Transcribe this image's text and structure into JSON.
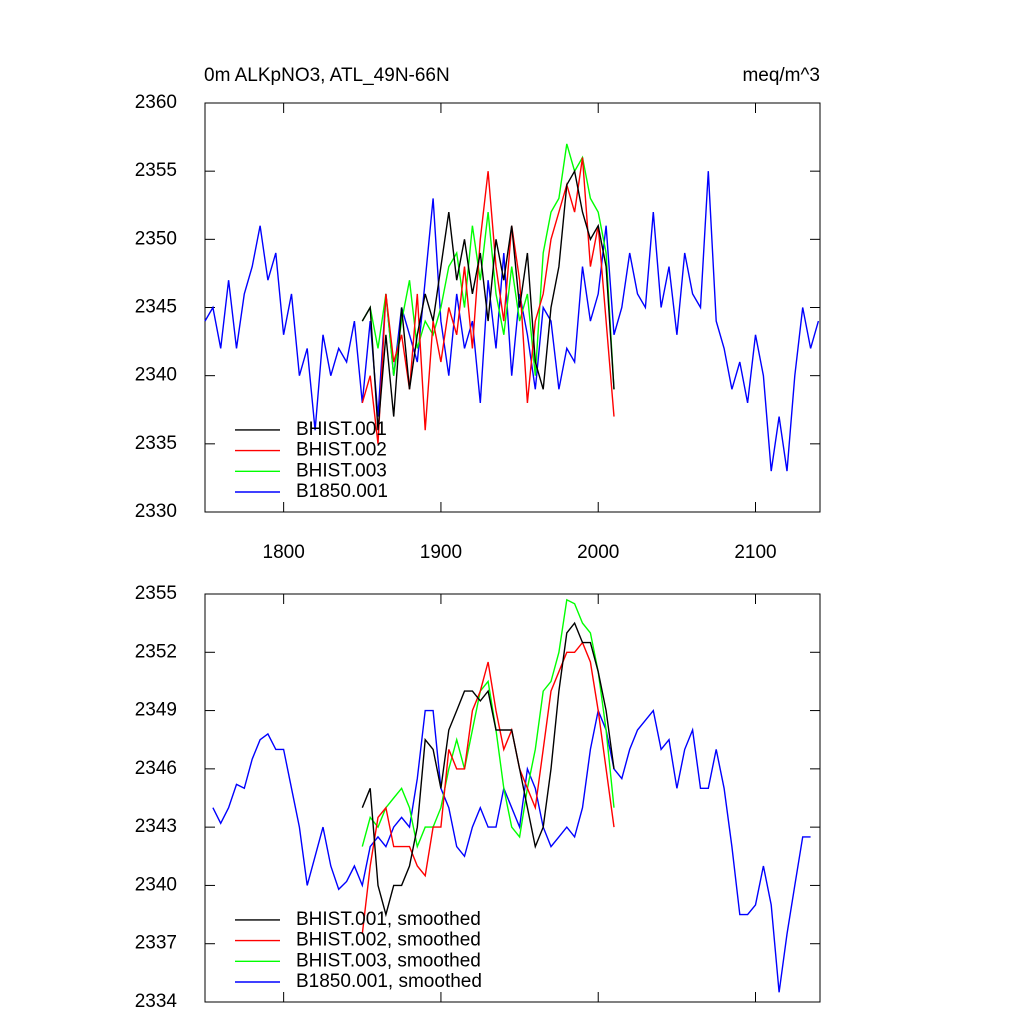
{
  "chart_data": [
    {
      "type": "line",
      "title": "0m ALKpNO3, ATL_49N-66N",
      "units": "meq/m^3",
      "x": [
        1750,
        1755,
        1760,
        1765,
        1770,
        1775,
        1780,
        1785,
        1790,
        1795,
        1800,
        1805,
        1810,
        1815,
        1820,
        1825,
        1830,
        1835,
        1840,
        1845,
        1850,
        1855,
        1860,
        1865,
        1870,
        1875,
        1880,
        1885,
        1890,
        1895,
        1900,
        1905,
        1910,
        1915,
        1920,
        1925,
        1930,
        1935,
        1940,
        1945,
        1950,
        1955,
        1960,
        1965,
        1970,
        1975,
        1980,
        1985,
        1990,
        1995,
        2000,
        2005,
        2010,
        2015,
        2020,
        2025,
        2030,
        2035,
        2040,
        2045,
        2050,
        2055,
        2060,
        2065,
        2070,
        2075,
        2080,
        2085,
        2090,
        2095,
        2100,
        2105,
        2110,
        2115,
        2120,
        2125,
        2130,
        2135,
        2140
      ],
      "xlim": [
        1750,
        2141
      ],
      "xticks": [
        1800,
        1900,
        2000,
        2100
      ],
      "ylim": [
        2330,
        2360
      ],
      "yticks": [
        2330,
        2335,
        2340,
        2345,
        2350,
        2355,
        2360
      ],
      "legend": "lower left",
      "series": [
        {
          "name": "BHIST.001",
          "color": "#000000",
          "values": [
            null,
            null,
            null,
            null,
            null,
            null,
            null,
            null,
            null,
            null,
            null,
            null,
            null,
            null,
            null,
            null,
            null,
            null,
            null,
            null,
            2344,
            2345,
            2336,
            2343,
            2337,
            2345,
            2339,
            2343,
            2346,
            2344,
            2348,
            2352,
            2347,
            2350,
            2346,
            2349,
            2344,
            2350,
            2347,
            2351,
            2345,
            2349,
            2341,
            2339,
            2345,
            2348,
            2354,
            2355,
            2352,
            2350,
            2351,
            2348,
            2339,
            null,
            null,
            null,
            null,
            null,
            null,
            null,
            null,
            null,
            null,
            null,
            null,
            null,
            null,
            null,
            null,
            null,
            null,
            null,
            null,
            null,
            null,
            null,
            null,
            null,
            null
          ]
        },
        {
          "name": "BHIST.002",
          "color": "#ff0000",
          "values": [
            null,
            null,
            null,
            null,
            null,
            null,
            null,
            null,
            null,
            null,
            null,
            null,
            null,
            null,
            null,
            null,
            null,
            null,
            null,
            null,
            2338,
            2340,
            2335,
            2346,
            2341,
            2343,
            2339,
            2346,
            2336,
            2344,
            2341,
            2345,
            2343,
            2348,
            2342,
            2350,
            2355,
            2348,
            2344,
            2351,
            2347,
            2338,
            2344,
            2346,
            2350,
            2352,
            2354,
            2352,
            2356,
            2348,
            2351,
            2344,
            2337,
            null,
            null,
            null,
            null,
            null,
            null,
            null,
            null,
            null,
            null,
            null,
            null,
            null,
            null,
            null,
            null,
            null,
            null,
            null,
            null,
            null,
            null,
            null,
            null,
            null,
            null
          ]
        },
        {
          "name": "BHIST.003",
          "color": "#00ff00",
          "values": [
            null,
            null,
            null,
            null,
            null,
            null,
            null,
            null,
            null,
            null,
            null,
            null,
            null,
            null,
            null,
            null,
            null,
            null,
            null,
            null,
            2344,
            2345,
            2342,
            2346,
            2340,
            2344,
            2347,
            2342,
            2344,
            2343,
            2345,
            2348,
            2349,
            2345,
            2351,
            2347,
            2352,
            2346,
            2343,
            2348,
            2344,
            2346,
            2340,
            2349,
            2352,
            2353,
            2357,
            2355,
            2356,
            2353,
            2352,
            2349,
            2339,
            null,
            null,
            null,
            null,
            null,
            null,
            null,
            null,
            null,
            null,
            null,
            null,
            null,
            null,
            null,
            null,
            null,
            null,
            null,
            null,
            null,
            null,
            null,
            null,
            null,
            null
          ]
        },
        {
          "name": "B1850.001",
          "color": "#0000ff",
          "values": [
            2344,
            2345,
            2342,
            2347,
            2342,
            2346,
            2348,
            2351,
            2347,
            2349,
            2343,
            2346,
            2340,
            2342,
            2336,
            2343,
            2340,
            2342,
            2341,
            2344,
            2338,
            2344,
            2337,
            2346,
            2340,
            2345,
            2343,
            2341,
            2347,
            2353,
            2344,
            2340,
            2346,
            2342,
            2344,
            2338,
            2347,
            2342,
            2349,
            2340,
            2346,
            2343,
            2339,
            2345,
            2344,
            2339,
            2342,
            2341,
            2348,
            2344,
            2346,
            2351,
            2343,
            2345,
            2349,
            2346,
            2345,
            2352,
            2345,
            2348,
            2343,
            2349,
            2346,
            2345,
            2355,
            2344,
            2342,
            2339,
            2341,
            2338,
            2343,
            2340,
            2333,
            2337,
            2333,
            2340,
            2345,
            2342,
            2344
          ]
        }
      ]
    },
    {
      "type": "line",
      "x": [
        1750,
        1755,
        1760,
        1765,
        1770,
        1775,
        1780,
        1785,
        1790,
        1795,
        1800,
        1805,
        1810,
        1815,
        1820,
        1825,
        1830,
        1835,
        1840,
        1845,
        1850,
        1855,
        1860,
        1865,
        1870,
        1875,
        1880,
        1885,
        1890,
        1895,
        1900,
        1905,
        1910,
        1915,
        1920,
        1925,
        1930,
        1935,
        1940,
        1945,
        1950,
        1955,
        1960,
        1965,
        1970,
        1975,
        1980,
        1985,
        1990,
        1995,
        2000,
        2005,
        2010,
        2015,
        2020,
        2025,
        2030,
        2035,
        2040,
        2045,
        2050,
        2055,
        2060,
        2065,
        2070,
        2075,
        2080,
        2085,
        2090,
        2095,
        2100,
        2105,
        2110,
        2115,
        2120,
        2125,
        2130,
        2135,
        2140
      ],
      "xlim": [
        1750,
        2141
      ],
      "xticks": [
        1800,
        1900,
        2000,
        2100
      ],
      "ylim": [
        2334,
        2355
      ],
      "yticks": [
        2334,
        2337,
        2340,
        2343,
        2346,
        2349,
        2352,
        2355
      ],
      "legend": "lower left",
      "series": [
        {
          "name": "BHIST.001, smoothed",
          "color": "#000000",
          "values": [
            null,
            null,
            null,
            null,
            null,
            null,
            null,
            null,
            null,
            null,
            null,
            null,
            null,
            null,
            null,
            null,
            null,
            null,
            null,
            null,
            2344,
            2345,
            2340,
            2338.5,
            2340,
            2340,
            2341,
            2343,
            2347.5,
            2347,
            2345,
            2348,
            2349,
            2350,
            2350,
            2349.5,
            2350,
            2348,
            2348,
            2348,
            2346,
            2344,
            2342,
            2343,
            2346,
            2350,
            2353,
            2353.5,
            2352.5,
            2352.5,
            2351,
            2349,
            2346,
            null,
            null,
            null,
            null,
            null,
            null,
            null,
            null,
            null,
            null,
            null,
            null,
            null,
            null,
            null,
            null,
            null,
            null,
            null,
            null,
            null,
            null,
            null,
            null,
            null,
            null
          ]
        },
        {
          "name": "BHIST.002, smoothed",
          "color": "#ff0000",
          "values": [
            null,
            null,
            null,
            null,
            null,
            null,
            null,
            null,
            null,
            null,
            null,
            null,
            null,
            null,
            null,
            null,
            null,
            null,
            null,
            null,
            2337.5,
            2341,
            2343.5,
            2344,
            2342,
            2342,
            2342,
            2341,
            2340.5,
            2343,
            2343,
            2347,
            2346,
            2346,
            2349,
            2350,
            2351.5,
            2349,
            2347,
            2348,
            2346,
            2345,
            2344,
            2347,
            2350,
            2351,
            2352,
            2352,
            2352.5,
            2351.5,
            2349,
            2346,
            2343,
            null,
            null,
            null,
            null,
            null,
            null,
            null,
            null,
            null,
            null,
            null,
            null,
            null,
            null,
            null,
            null,
            null,
            null,
            null,
            null,
            null,
            null,
            null,
            null,
            null,
            null
          ]
        },
        {
          "name": "BHIST.003, smoothed",
          "color": "#00ff00",
          "values": [
            null,
            null,
            null,
            null,
            null,
            null,
            null,
            null,
            null,
            null,
            null,
            null,
            null,
            null,
            null,
            null,
            null,
            null,
            null,
            null,
            2342,
            2343.5,
            2343,
            2344,
            2344.5,
            2345,
            2344,
            2342,
            2343,
            2343,
            2344,
            2346,
            2347.5,
            2346,
            2348,
            2350,
            2350.5,
            2348,
            2345,
            2343,
            2342.5,
            2345,
            2347,
            2350,
            2350.5,
            2352,
            2354.7,
            2354.5,
            2353.5,
            2353,
            2351,
            2348,
            2344,
            null,
            null,
            null,
            null,
            null,
            null,
            null,
            null,
            null,
            null,
            null,
            null,
            null,
            null,
            null,
            null,
            null,
            null,
            null,
            null,
            null,
            null,
            null,
            null,
            null,
            null
          ]
        },
        {
          "name": "B1850.001, smoothed",
          "color": "#0000ff",
          "values": [
            null,
            2344,
            2343.2,
            2344,
            2345.2,
            2345,
            2346.5,
            2347.5,
            2347.8,
            2347,
            2347,
            2345,
            2343,
            2340,
            2341.5,
            2343,
            2341,
            2339.8,
            2340.2,
            2341,
            2340,
            2342,
            2342.5,
            2342,
            2343,
            2343.5,
            2343,
            2345.5,
            2349,
            2349,
            2345,
            2344,
            2342,
            2341.5,
            2343,
            2344,
            2343,
            2343,
            2345,
            2344,
            2343,
            2346,
            2345,
            2343,
            2342,
            2342.5,
            2343,
            2342.5,
            2344,
            2347,
            2349,
            2348,
            2346,
            2345.5,
            2347,
            2348,
            2348.5,
            2349,
            2347,
            2347.5,
            2345,
            2347,
            2348,
            2345,
            2345,
            2347,
            2345,
            2342,
            2338.5,
            2338.5,
            2339,
            2341,
            2339,
            2334.5,
            2337.5,
            2340,
            2342.5,
            2342.5,
            null
          ]
        }
      ]
    }
  ]
}
